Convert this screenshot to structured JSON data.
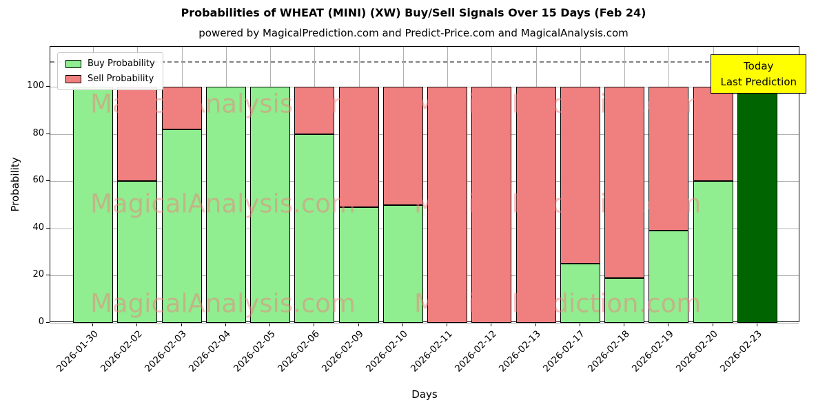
{
  "title": "Probabilities of WHEAT (MINI) (XW) Buy/Sell Signals Over 15 Days (Feb 24)",
  "subtitle": "powered by MagicalPrediction.com and Predict-Price.com and MagicalAnalysis.com",
  "legend": [
    {
      "label": "Buy Probability",
      "color": "#90EE90"
    },
    {
      "label": "Sell Probability",
      "color": "#F08080"
    }
  ],
  "annotation": {
    "line1": "Today",
    "line2": "Last Prediction",
    "bg_color": "#ffff00"
  },
  "watermarks": [
    "MagicalAnalysis.com",
    "MagicalPrediction.com"
  ],
  "chart_data": {
    "type": "bar",
    "stacked": true,
    "title": "Probabilities of WHEAT (MINI) (XW) Buy/Sell Signals Over 15 Days (Feb 24)",
    "xlabel": "Days",
    "ylabel": "Probability",
    "categories": [
      "2026-01-30",
      "2026-02-02",
      "2026-02-03",
      "2026-02-04",
      "2026-02-05",
      "2026-02-06",
      "2026-02-09",
      "2026-02-10",
      "2026-02-11",
      "2026-02-12",
      "2026-02-13",
      "2026-02-17",
      "2026-02-18",
      "2026-02-19",
      "2026-02-20",
      "2026-02-23"
    ],
    "series": [
      {
        "name": "Buy Probability",
        "color": "#90EE90",
        "values": [
          100,
          60,
          82,
          100,
          100,
          80,
          49,
          50,
          0,
          0,
          0,
          25,
          19,
          39,
          60,
          100
        ]
      },
      {
        "name": "Sell Probability",
        "color": "#F08080",
        "values": [
          0,
          40,
          18,
          0,
          0,
          20,
          51,
          50,
          100,
          100,
          100,
          75,
          81,
          61,
          40,
          0
        ]
      }
    ],
    "last_bar_color": "#006400",
    "bar_edge_color": "#000000",
    "yticks": [
      0,
      20,
      40,
      60,
      80,
      100
    ],
    "ylim": [
      0,
      117
    ],
    "dashed_line_y": 111,
    "grid": true,
    "legend_position": "upper left"
  }
}
